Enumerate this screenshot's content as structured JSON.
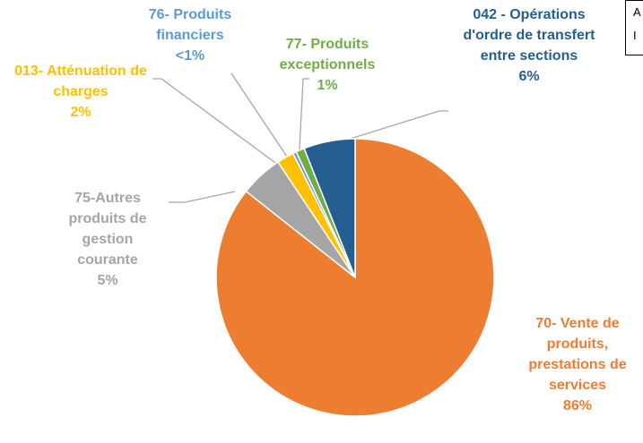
{
  "chart_data": {
    "type": "pie",
    "categories": [
      "70- Vente de produits, prestations de services",
      "75-Autres produits de gestion courante",
      "013- Atténuation de charges",
      "76- Produits financiers",
      "77- Produits exceptionnels",
      "042 - Opérations d'ordre de transfert entre sections"
    ],
    "values": [
      86,
      5,
      2,
      0.4,
      1,
      6
    ],
    "value_labels": [
      "86%",
      "5%",
      "2%",
      "<1%",
      "1%",
      "6%"
    ],
    "colors": [
      "#ED7D31",
      "#A5A5A5",
      "#FFC000",
      "#5B9BD5",
      "#70AD47",
      "#255E91"
    ],
    "corner_text": [
      "A",
      "I"
    ]
  }
}
